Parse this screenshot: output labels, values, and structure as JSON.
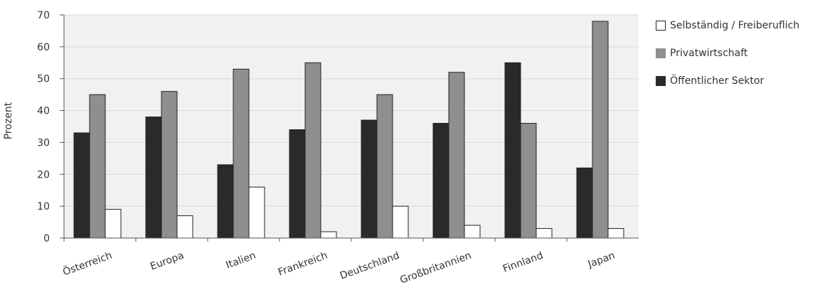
{
  "chart_data": {
    "type": "bar",
    "ylabel": "Prozent",
    "xlabel": "",
    "ylim": [
      0,
      70
    ],
    "yticks": [
      0,
      10,
      20,
      30,
      40,
      50,
      60,
      70
    ],
    "grid": true,
    "legend_position": "right",
    "categories": [
      "Österreich",
      "Europa",
      "Italien",
      "Frankreich",
      "Deutschland",
      "Großbritannien",
      "Finnland",
      "Japan"
    ],
    "series": [
      {
        "name": "Öffentlicher Sektor",
        "color": "#2a2a2a",
        "values": [
          33,
          38,
          23,
          34,
          37,
          36,
          55,
          22
        ]
      },
      {
        "name": "Privatwirtschaft",
        "color": "#8f8f8f",
        "values": [
          45,
          46,
          53,
          55,
          45,
          52,
          36,
          68
        ]
      },
      {
        "name": "Selbständig / Freiberuflich",
        "color": "#ffffff",
        "values": [
          9,
          7,
          16,
          2,
          10,
          4,
          3,
          3
        ]
      }
    ],
    "legend_order": [
      "Selbständig / Freiberuflich",
      "Privatwirtschaft",
      "Öffentlicher Sektor"
    ]
  }
}
